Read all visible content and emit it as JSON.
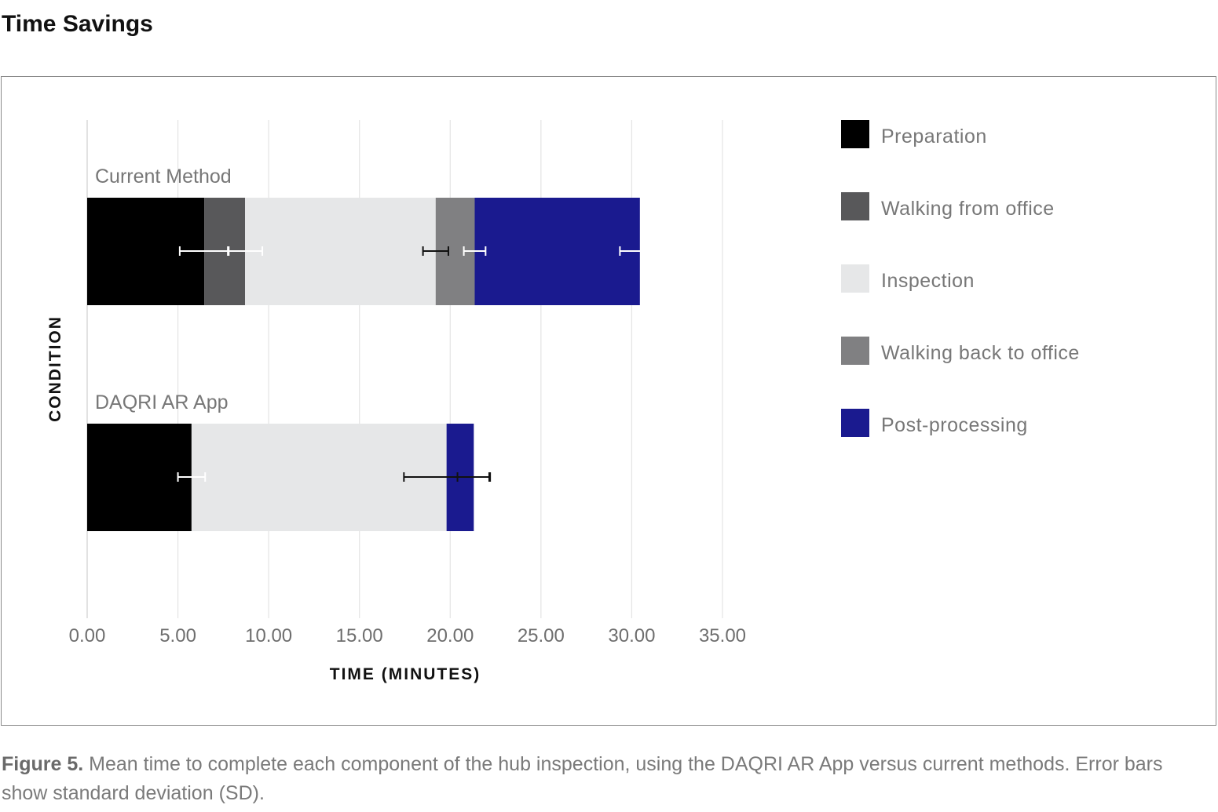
{
  "page": {
    "title": "Time Savings",
    "caption_label": "Figure 5.",
    "caption_text": "Mean time to complete each component of the hub inspection, using the DAQRI AR App versus current methods. Error bars show standard deviation (SD)."
  },
  "chart_data": {
    "type": "bar",
    "orientation": "horizontal",
    "stacked": true,
    "title": "",
    "xlabel": "TIME (MINUTES)",
    "ylabel": "CONDITION",
    "xlim": [
      0,
      35
    ],
    "xticks": [
      0,
      5,
      10,
      15,
      20,
      25,
      30,
      35
    ],
    "xtick_labels": [
      "0.00",
      "5.00",
      "10.00",
      "15.00",
      "20.00",
      "25.00",
      "30.00",
      "35.00"
    ],
    "grid": true,
    "legend_position": "right",
    "categories": [
      "Current Method",
      "DAQRI AR App"
    ],
    "series": [
      {
        "name": "Preparation",
        "color": "#000000",
        "values": [
          6.45,
          5.75
        ],
        "sd": [
          1.35,
          0.75
        ],
        "error_color": [
          "#ffffff",
          "#ffffff"
        ]
      },
      {
        "name": "Walking from office",
        "color": "#58585a",
        "values": [
          2.25,
          0
        ],
        "sd": [
          0.95,
          0
        ],
        "error_color": [
          "#ffffff",
          "#ffffff"
        ]
      },
      {
        "name": "Inspection",
        "color": "#e6e7e8",
        "values": [
          10.5,
          14.05
        ],
        "sd": [
          0.7,
          2.35
        ],
        "error_color": [
          "#111111",
          "#111111"
        ]
      },
      {
        "name": "Walking back to office",
        "color": "#808082",
        "values": [
          2.15,
          0
        ],
        "sd": [
          0.6,
          0
        ],
        "error_color": [
          "#ffffff",
          "#ffffff"
        ]
      },
      {
        "name": "Post-processing",
        "color": "#1a1a8f",
        "values": [
          9.1,
          1.5
        ],
        "sd": [
          1.1,
          0.9
        ],
        "error_color": [
          "#ffffff",
          "#111111"
        ]
      }
    ]
  }
}
